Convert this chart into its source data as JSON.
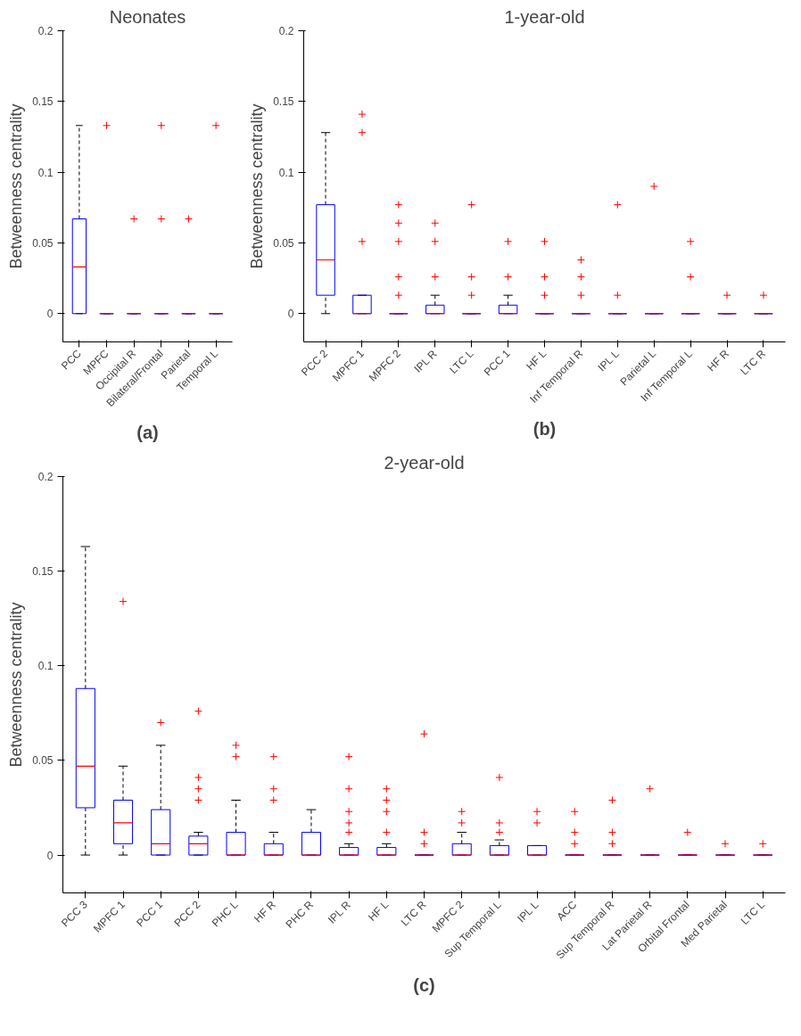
{
  "chart_data": [
    {
      "type": "box",
      "title": "Neonates",
      "ylabel": "Betweenness centrality",
      "annotations": [
        "(a)"
      ],
      "categories": [
        "PCC",
        "MPFC",
        "Occipital R",
        "Bilateral/Frontal",
        "Parietal",
        "Temporal L"
      ],
      "ylim": [
        -0.02,
        0.2
      ],
      "yticks": [
        0,
        0.05,
        0.1,
        0.15,
        0.2
      ],
      "series": [
        {
          "color": "#0000ff",
          "boxes": [
            {
              "low": 0,
              "q1": 0,
              "median": 0.033,
              "q3": 0.067,
              "high": 0.133
            },
            {
              "low": 0,
              "q1": 0,
              "median": 0,
              "q3": 0,
              "high": 0,
              "outliers": [
                0.133
              ]
            },
            {
              "low": 0,
              "q1": 0,
              "median": 0,
              "q3": 0,
              "high": 0,
              "outliers": [
                0.067
              ]
            },
            {
              "low": 0,
              "q1": 0,
              "median": 0,
              "q3": 0,
              "high": 0,
              "outliers": [
                0.133,
                0.067
              ]
            },
            {
              "low": 0,
              "q1": 0,
              "median": 0,
              "q3": 0,
              "high": 0,
              "outliers": [
                0.067
              ]
            },
            {
              "low": 0,
              "q1": 0,
              "median": 0,
              "q3": 0,
              "high": 0,
              "outliers": [
                0.133
              ]
            }
          ]
        }
      ]
    },
    {
      "type": "box",
      "title": "1-year-old",
      "ylabel": "Betweenness centrality",
      "annotations": [
        "(b)"
      ],
      "categories": [
        "PCC 2",
        "MPFC 1",
        "MPFC 2",
        "IPL R",
        "LTC L",
        "PCC 1",
        "HF L",
        "Inf Temporal R",
        "IPL L",
        "Parietal L",
        "Inf Temporal L",
        "HF R",
        "LTC R"
      ],
      "ylim": [
        -0.02,
        0.2
      ],
      "yticks": [
        0,
        0.05,
        0.1,
        0.15,
        0.2
      ],
      "series": [
        {
          "color": "#0000ff",
          "boxes": [
            {
              "low": 0,
              "q1": 0.013,
              "median": 0.038,
              "q3": 0.077,
              "high": 0.128
            },
            {
              "low": 0,
              "q1": 0,
              "median": 0,
              "q3": 0.013,
              "high": 0.013,
              "outliers": [
                0.141,
                0.128,
                0.051
              ]
            },
            {
              "low": 0,
              "q1": 0,
              "median": 0,
              "q3": 0,
              "high": 0,
              "outliers": [
                0.077,
                0.064,
                0.051,
                0.026,
                0.013
              ]
            },
            {
              "low": 0,
              "q1": 0,
              "median": 0,
              "q3": 0.006,
              "high": 0.013,
              "outliers": [
                0.064,
                0.051,
                0.026
              ]
            },
            {
              "low": 0,
              "q1": 0,
              "median": 0,
              "q3": 0,
              "high": 0,
              "outliers": [
                0.077,
                0.026,
                0.013
              ]
            },
            {
              "low": 0,
              "q1": 0,
              "median": 0,
              "q3": 0.006,
              "high": 0.013,
              "outliers": [
                0.051,
                0.026
              ]
            },
            {
              "low": 0,
              "q1": 0,
              "median": 0,
              "q3": 0,
              "high": 0,
              "outliers": [
                0.051,
                0.026,
                0.013
              ]
            },
            {
              "low": 0,
              "q1": 0,
              "median": 0,
              "q3": 0,
              "high": 0,
              "outliers": [
                0.038,
                0.026,
                0.013
              ]
            },
            {
              "low": 0,
              "q1": 0,
              "median": 0,
              "q3": 0,
              "high": 0,
              "outliers": [
                0.077,
                0.013
              ]
            },
            {
              "low": 0,
              "q1": 0,
              "median": 0,
              "q3": 0,
              "high": 0,
              "outliers": [
                0.09
              ]
            },
            {
              "low": 0,
              "q1": 0,
              "median": 0,
              "q3": 0,
              "high": 0,
              "outliers": [
                0.051,
                0.026
              ]
            },
            {
              "low": 0,
              "q1": 0,
              "median": 0,
              "q3": 0,
              "high": 0,
              "outliers": [
                0.013
              ]
            },
            {
              "low": 0,
              "q1": 0,
              "median": 0,
              "q3": 0,
              "high": 0,
              "outliers": [
                0.013
              ]
            }
          ]
        }
      ]
    },
    {
      "type": "box",
      "title": "2-year-old",
      "ylabel": "Betweenness centrality",
      "annotations": [
        "(c)"
      ],
      "categories": [
        "PCC 3",
        "MPFC 1",
        "PCC 1",
        "PCC 2",
        "PHC L",
        "HF R",
        "PHC R",
        "IPL R",
        "HF L",
        "LTC R",
        "MPFC 2",
        "Sup Temporal L",
        "IPL L",
        "ACC",
        "Sup Temporal R",
        "Lat Parietal R",
        "Orbital Frontal",
        "Med Parietal",
        "LTC L"
      ],
      "ylim": [
        -0.02,
        0.2
      ],
      "yticks": [
        0,
        0.05,
        0.1,
        0.15,
        0.2
      ],
      "series": [
        {
          "color": "#0000ff",
          "boxes": [
            {
              "low": 0,
              "q1": 0.025,
              "median": 0.047,
              "q3": 0.088,
              "high": 0.163
            },
            {
              "low": 0,
              "q1": 0.006,
              "median": 0.017,
              "q3": 0.029,
              "high": 0.047,
              "outliers": [
                0.134
              ]
            },
            {
              "low": 0,
              "q1": 0,
              "median": 0.006,
              "q3": 0.024,
              "high": 0.058,
              "outliers": [
                0.07
              ]
            },
            {
              "low": 0,
              "q1": 0,
              "median": 0.006,
              "q3": 0.01,
              "high": 0.012,
              "outliers": [
                0.076,
                0.041,
                0.035,
                0.029
              ]
            },
            {
              "low": 0,
              "q1": 0,
              "median": 0,
              "q3": 0.012,
              "high": 0.029,
              "outliers": [
                0.058,
                0.052
              ]
            },
            {
              "low": 0,
              "q1": 0,
              "median": 0,
              "q3": 0.006,
              "high": 0.012,
              "outliers": [
                0.052,
                0.035,
                0.029
              ]
            },
            {
              "low": 0,
              "q1": 0,
              "median": 0,
              "q3": 0.012,
              "high": 0.024
            },
            {
              "low": 0,
              "q1": 0,
              "median": 0,
              "q3": 0.004,
              "high": 0.006,
              "outliers": [
                0.052,
                0.035,
                0.023,
                0.017,
                0.012
              ]
            },
            {
              "low": 0,
              "q1": 0,
              "median": 0,
              "q3": 0.004,
              "high": 0.006,
              "outliers": [
                0.035,
                0.029,
                0.023,
                0.012
              ]
            },
            {
              "low": 0,
              "q1": 0,
              "median": 0,
              "q3": 0,
              "high": 0,
              "outliers": [
                0.064,
                0.012,
                0.006
              ]
            },
            {
              "low": 0,
              "q1": 0,
              "median": 0,
              "q3": 0.006,
              "high": 0.012,
              "outliers": [
                0.023,
                0.017
              ]
            },
            {
              "low": 0,
              "q1": 0,
              "median": 0,
              "q3": 0.005,
              "high": 0.008,
              "outliers": [
                0.041,
                0.017,
                0.012
              ]
            },
            {
              "low": 0,
              "q1": 0,
              "median": 0,
              "q3": 0.005,
              "high": 0.005,
              "outliers": [
                0.023,
                0.017
              ]
            },
            {
              "low": 0,
              "q1": 0,
              "median": 0,
              "q3": 0,
              "high": 0,
              "outliers": [
                0.023,
                0.012,
                0.006
              ]
            },
            {
              "low": 0,
              "q1": 0,
              "median": 0,
              "q3": 0,
              "high": 0,
              "outliers": [
                0.029,
                0.012,
                0.006
              ]
            },
            {
              "low": 0,
              "q1": 0,
              "median": 0,
              "q3": 0,
              "high": 0,
              "outliers": [
                0.035
              ]
            },
            {
              "low": 0,
              "q1": 0,
              "median": 0,
              "q3": 0,
              "high": 0,
              "outliers": [
                0.012
              ]
            },
            {
              "low": 0,
              "q1": 0,
              "median": 0,
              "q3": 0,
              "high": 0,
              "outliers": [
                0.006
              ]
            },
            {
              "low": 0,
              "q1": 0,
              "median": 0,
              "q3": 0,
              "high": 0,
              "outliers": [
                0.006
              ]
            }
          ]
        }
      ]
    }
  ]
}
